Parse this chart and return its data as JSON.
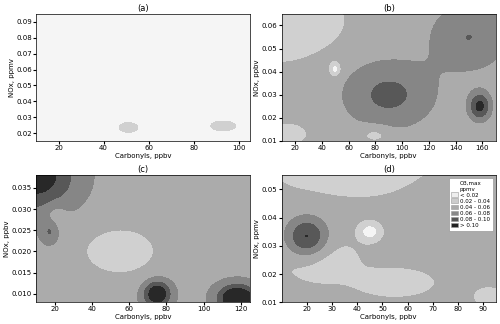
{
  "panels": [
    {
      "label": "(a)",
      "xlim": [
        10,
        105
      ],
      "ylim": [
        0.015,
        0.095
      ],
      "xticks": [
        20,
        40,
        60,
        80,
        100
      ],
      "yticks": [
        0.02,
        0.03,
        0.04,
        0.05,
        0.06,
        0.07,
        0.08,
        0.09
      ],
      "xlabel": "Carbonyls, ppbv",
      "ylabel": "NOx, ppmv"
    },
    {
      "label": "(b)",
      "xlim": [
        10,
        170
      ],
      "ylim": [
        0.01,
        0.065
      ],
      "xticks": [
        20,
        40,
        60,
        80,
        100,
        120,
        140,
        160
      ],
      "yticks": [
        0.01,
        0.02,
        0.03,
        0.04,
        0.05,
        0.06
      ],
      "xlabel": "Carbonyls, ppbv",
      "ylabel": "NOx, ppbv"
    },
    {
      "label": "(c)",
      "xlim": [
        10,
        125
      ],
      "ylim": [
        0.008,
        0.038
      ],
      "xticks": [
        20,
        40,
        60,
        80,
        100,
        120
      ],
      "yticks": [
        0.01,
        0.015,
        0.02,
        0.025,
        0.03,
        0.035
      ],
      "xlabel": "Carbonyls, ppbv",
      "ylabel": "NOx, ppbv"
    },
    {
      "label": "(d)",
      "xlim": [
        10,
        95
      ],
      "ylim": [
        0.01,
        0.055
      ],
      "xticks": [
        20,
        30,
        40,
        50,
        60,
        70,
        80,
        90
      ],
      "yticks": [
        0.01,
        0.02,
        0.03,
        0.04,
        0.05
      ],
      "xlabel": "Carbonyls, ppbv",
      "ylabel": "NOx, ppmv",
      "has_legend": true
    }
  ],
  "legend_levels": [
    "< 0.02",
    "0.02 - 0.04",
    "0.04 - 0.06",
    "0.06 - 0.08",
    "0.08 - 0.10",
    "> 0.10"
  ],
  "legend_colors": [
    "#eeeeee",
    "#cccccc",
    "#aaaaaa",
    "#888888",
    "#555555",
    "#222222"
  ],
  "legend_title": "O3,max\nppmv",
  "contour_levels": [
    0.0,
    0.02,
    0.04,
    0.06,
    0.08,
    0.1,
    0.15
  ],
  "fill_colors": [
    "#f5f5f5",
    "#d0d0d0",
    "#ababab",
    "#868686",
    "#585858",
    "#282828"
  ]
}
